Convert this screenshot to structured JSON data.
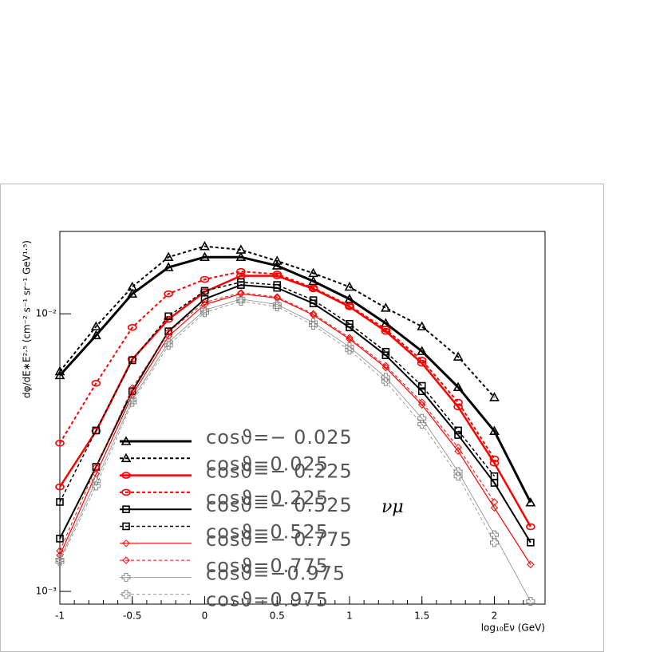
{
  "chart_data": {
    "type": "line",
    "y_label": "dφ/dE∗E²·⁵ (cm⁻² s⁻¹ sr⁻¹ GeV¹·⁵)",
    "x_label": "log₁₀Eν (GeV)",
    "annotation": "νμ",
    "log_y": true,
    "xlim": [
      -1,
      2.35
    ],
    "ylim": [
      0.0009,
      0.0198
    ],
    "xticks": [
      -1,
      -0.5,
      0,
      0.5,
      1,
      1.5,
      2
    ],
    "yticks": [
      {
        "value": 0.001,
        "label": "10⁻³"
      },
      {
        "value": 0.01,
        "label": "10⁻²"
      }
    ],
    "x": [
      -1,
      -0.75,
      -0.5,
      -0.25,
      0,
      0.25,
      0.5,
      0.75,
      1,
      1.25,
      1.5,
      1.75,
      2,
      2.25
    ],
    "series": [
      {
        "name": "cosϑ=− 0.025",
        "color": "#000000",
        "marker": "triangle",
        "line": "solid",
        "values": [
          0.006,
          0.00836,
          0.0118,
          0.0147,
          0.016,
          0.016,
          0.0149,
          0.0131,
          0.0113,
          0.00924,
          0.00733,
          0.00544,
          0.00378,
          0.00209
        ]
      },
      {
        "name": "cosϑ=0.025",
        "color": "#000000",
        "marker": "triangle",
        "line": "dashed",
        "values": [
          0.0062,
          0.009,
          0.0125,
          0.016,
          0.0175,
          0.017,
          0.0155,
          0.014,
          0.0125,
          0.0105,
          0.009,
          0.007,
          0.005,
          null
        ]
      },
      {
        "name": "cosϑ=− 0.225",
        "color": "#ff0000",
        "marker": "circle",
        "line": "solid",
        "values": [
          0.00238,
          0.00378,
          0.00686,
          0.00955,
          0.012,
          0.0137,
          0.0137,
          0.0123,
          0.0106,
          0.00865,
          0.00664,
          0.00462,
          0.0029,
          0.00171
        ]
      },
      {
        "name": "cosϑ=0.225",
        "color": "#ff0000",
        "marker": "circle",
        "line": "dashed",
        "values": [
          0.00342,
          0.00562,
          0.00893,
          0.0118,
          0.0133,
          0.0142,
          0.0139,
          0.0124,
          0.0107,
          0.0088,
          0.0068,
          0.0048,
          0.003,
          null
        ]
      },
      {
        "name": "cosϑ=− 0.525",
        "color": "#000000",
        "marker": "square",
        "line": "solid",
        "values": [
          0.00155,
          0.00281,
          0.00526,
          0.00865,
          0.0113,
          0.0127,
          0.0124,
          0.0109,
          0.00893,
          0.00709,
          0.00526,
          0.00366,
          0.00246,
          0.0015
        ]
      },
      {
        "name": "cosϑ=0.525",
        "color": "#000000",
        "marker": "square",
        "line": "dashed",
        "values": [
          0.0021,
          0.0038,
          0.0068,
          0.0098,
          0.0121,
          0.013,
          0.0127,
          0.0112,
          0.0092,
          0.0073,
          0.0055,
          0.0038,
          0.0026,
          null
        ]
      },
      {
        "name": "cosϑ=− 0.775",
        "color": "#ff0000",
        "marker": "diamond",
        "line": "solid",
        "values": [
          0.00135,
          0.00265,
          0.0051,
          0.0083,
          0.0108,
          0.0118,
          0.0114,
          0.0099,
          0.0081,
          0.0064,
          0.0047,
          0.0032,
          0.002,
          0.00125
        ]
      },
      {
        "name": "cosϑ=0.775",
        "color": "#ff0000",
        "marker": "diamond",
        "line": "dashed",
        "values": [
          0.0014,
          0.0028,
          0.0054,
          0.0086,
          0.011,
          0.0119,
          0.0115,
          0.01,
          0.0082,
          0.0065,
          0.0048,
          0.0033,
          0.0021,
          null
        ]
      },
      {
        "name": "cosϑ=−0.975",
        "color": "#888888",
        "marker": "cross",
        "line": "solid",
        "values": [
          0.0013,
          0.0025,
          0.0049,
          0.0079,
          0.0103,
          0.0113,
          0.0108,
          0.0093,
          0.0076,
          0.0059,
          0.0042,
          0.0027,
          0.0016,
          0.00092
        ]
      },
      {
        "name": "cosϑ=0.975",
        "color": "#888888",
        "marker": "cross",
        "line": "dashed",
        "values": [
          0.00128,
          0.0024,
          0.0048,
          0.0077,
          0.0101,
          0.0111,
          0.0106,
          0.0091,
          0.0074,
          0.0057,
          0.004,
          0.0026,
          0.0015,
          null
        ]
      }
    ]
  }
}
